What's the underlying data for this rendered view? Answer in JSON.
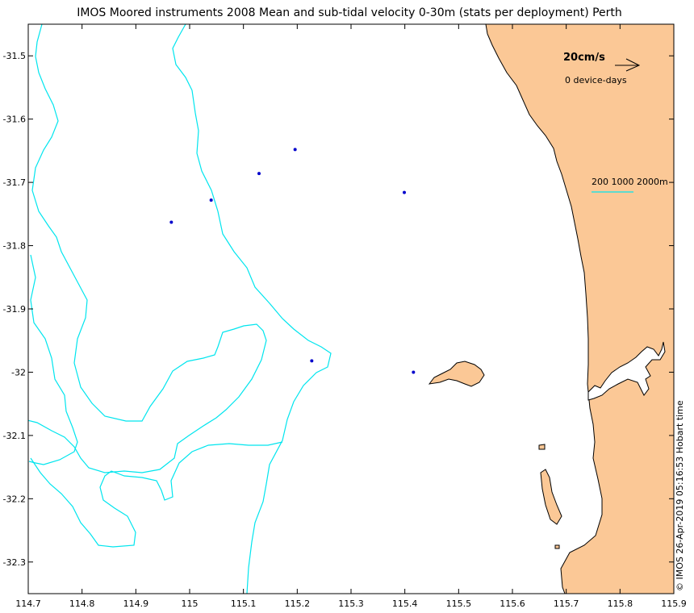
{
  "title": "IMOS Moored instruments 2008 Mean and sub-tidal velocity 0-30m (stats per deployment) Perth",
  "footer": "© IMOS 26-Apr-2019 05:16:53 Hobart time",
  "legend": {
    "scale_label": "20cm/s",
    "device_days": "0 device-days",
    "isobath_label": "200 1000 2000m"
  },
  "colors": {
    "land": "#fbc896",
    "isobath": "#00e5ee",
    "station": "#0000cc",
    "axis": "#000000"
  },
  "chart_data": {
    "type": "scatter",
    "title": "IMOS Moored instruments 2008 Mean and sub-tidal velocity 0-30m (stats per deployment) Perth",
    "xlabel": "",
    "ylabel": "",
    "xlim": [
      114.7,
      115.9
    ],
    "ylim": [
      -32.35,
      -31.45
    ],
    "x_ticks": [
      "114.7",
      "114.8",
      "114.9",
      "115",
      "115.1",
      "115.2",
      "115.3",
      "115.4",
      "115.5",
      "115.6",
      "115.7",
      "115.8",
      "115.9"
    ],
    "x_tick_values": [
      114.7,
      114.8,
      114.9,
      115.0,
      115.1,
      115.2,
      115.3,
      115.4,
      115.5,
      115.6,
      115.7,
      115.8,
      115.9
    ],
    "y_ticks": [
      "-31.5",
      "-31.6",
      "-31.7",
      "-31.8",
      "-31.9",
      "-32",
      "-32.1",
      "-32.2",
      "-32.3"
    ],
    "y_tick_values": [
      -31.5,
      -31.6,
      -31.7,
      -31.8,
      -31.9,
      -32.0,
      -32.1,
      -32.2,
      -32.3
    ],
    "stations": [
      {
        "lon": 115.196,
        "lat": -31.648
      },
      {
        "lon": 115.129,
        "lat": -31.686
      },
      {
        "lon": 115.04,
        "lat": -31.728
      },
      {
        "lon": 114.966,
        "lat": -31.763
      },
      {
        "lon": 115.399,
        "lat": -31.716
      },
      {
        "lon": 115.227,
        "lat": -31.982
      },
      {
        "lon": 115.416,
        "lat": -32.0
      }
    ],
    "isobath_depths_m": [
      200,
      1000,
      2000
    ]
  }
}
